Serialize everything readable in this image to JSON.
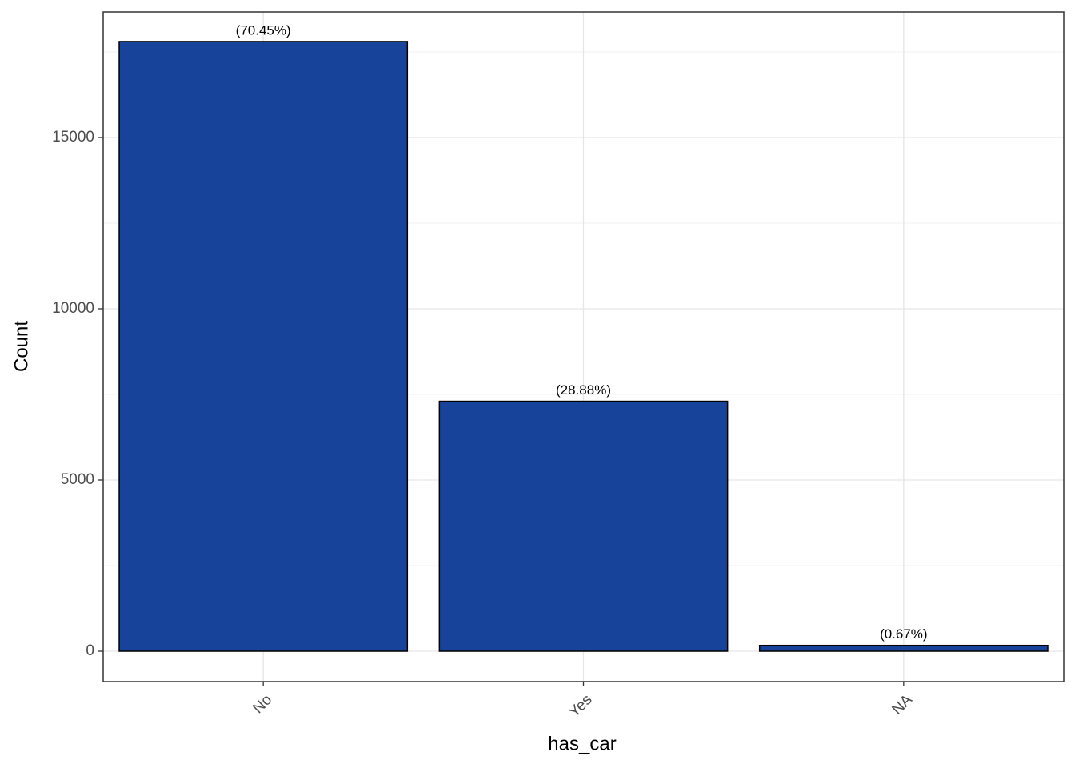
{
  "chart_data": {
    "type": "bar",
    "x_label": "has_car",
    "y_label": "Count",
    "categories": [
      "No",
      "Yes",
      "NA"
    ],
    "values": [
      17805,
      7300,
      170
    ],
    "bar_labels": [
      "(70.45%)",
      "(28.88%)",
      "(0.67%)"
    ],
    "color": "#18439a",
    "ylim": [
      -888,
      18668
    ],
    "yticks": [
      0,
      5000,
      10000,
      15000
    ],
    "minor_yticks": [
      2500,
      7500,
      12500,
      17500
    ],
    "grid": true
  }
}
